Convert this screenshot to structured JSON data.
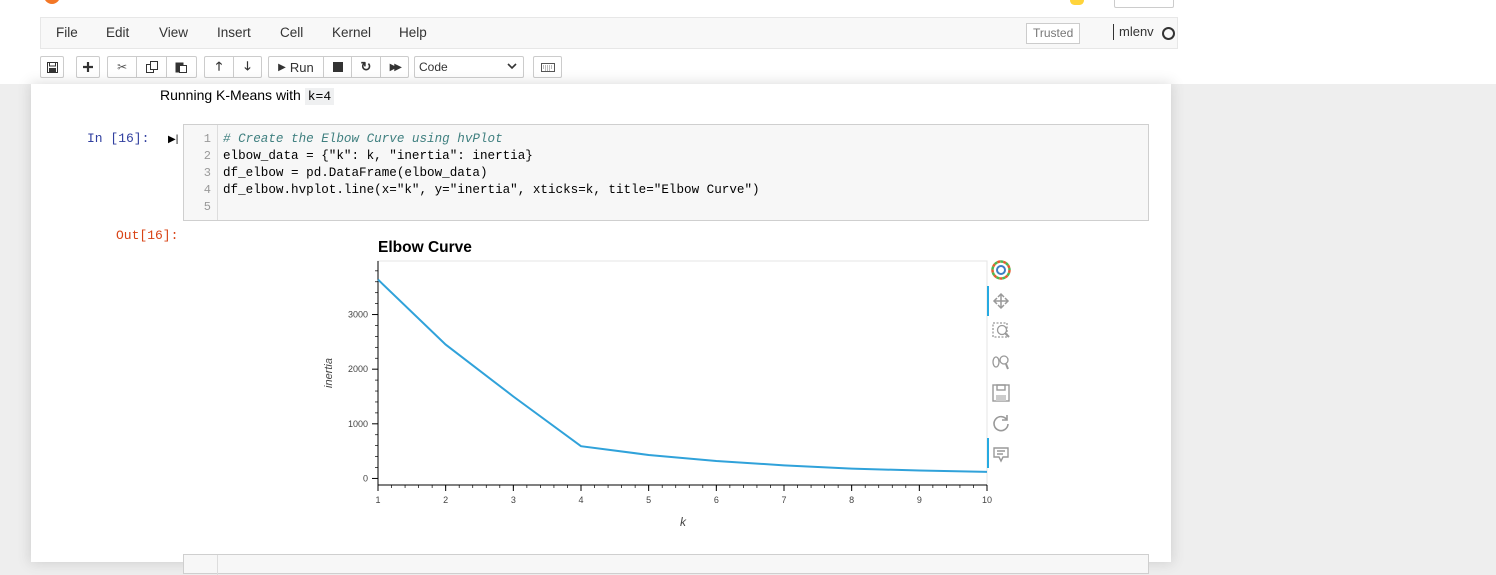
{
  "menubar": {
    "items": [
      "File",
      "Edit",
      "View",
      "Insert",
      "Cell",
      "Kernel",
      "Help"
    ],
    "trusted_label": "Trusted",
    "kernel_name": "mlenv"
  },
  "toolbar": {
    "run_label": "Run",
    "cell_type_value": "Code",
    "icons": [
      "save-icon",
      "plus-icon",
      "cut-icon",
      "copy-icon",
      "paste-icon",
      "arrow-up-icon",
      "arrow-down-icon",
      "run-icon",
      "stop-icon",
      "restart-icon",
      "fast-forward-icon",
      "keyboard-icon"
    ]
  },
  "markdown": {
    "text": "Running K-Means with",
    "code": "k=4"
  },
  "cell": {
    "in_prompt": "In [16]:",
    "out_prompt": "Out[16]:",
    "line_numbers": [
      "1",
      "2",
      "3",
      "4",
      "5"
    ],
    "code_lines": [
      "# Create the Elbow Curve using hvPlot",
      "elbow_data = {\"k\": k, \"inertia\": inertia}",
      "df_elbow = pd.DataFrame(elbow_data)",
      "df_elbow.hvplot.line(x=\"k\", y=\"inertia\", xticks=k, title=\"Elbow Curve\")",
      ""
    ]
  },
  "chart_data": {
    "type": "line",
    "title": "Elbow Curve",
    "xlabel": "k",
    "ylabel": "inertia",
    "x": [
      1,
      2,
      3,
      4,
      5,
      6,
      7,
      8,
      9,
      10
    ],
    "series": [
      {
        "values": [
          3640,
          2450,
          1500,
          590,
          430,
          320,
          240,
          180,
          145,
          120
        ]
      }
    ],
    "xlim": [
      1,
      10
    ],
    "ylim": [
      -120,
      3980
    ],
    "xticks": [
      "1",
      "2",
      "3",
      "4",
      "5",
      "6",
      "7",
      "8",
      "9",
      "10"
    ],
    "yticks": [
      0,
      1000,
      2000,
      3000
    ],
    "grid": false,
    "line_color": "#30a2da"
  },
  "plot_tools": [
    "bokeh-logo-icon",
    "pan-icon",
    "box-zoom-icon",
    "wheel-zoom-icon",
    "save-icon",
    "reset-icon",
    "hover-icon"
  ]
}
